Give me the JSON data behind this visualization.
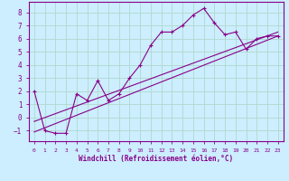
{
  "xlabel": "Windchill (Refroidissement éolien,°C)",
  "bg_color": "#cceeff",
  "grid_color": "#b0d8cc",
  "line_color": "#880088",
  "xlim": [
    -0.5,
    23.5
  ],
  "ylim": [
    -1.8,
    8.8
  ],
  "xticks": [
    0,
    1,
    2,
    3,
    4,
    5,
    6,
    7,
    8,
    9,
    10,
    11,
    12,
    13,
    14,
    15,
    16,
    17,
    18,
    19,
    20,
    21,
    22,
    23
  ],
  "yticks": [
    -1,
    0,
    1,
    2,
    3,
    4,
    5,
    6,
    7,
    8
  ],
  "main_x": [
    0,
    1,
    2,
    3,
    4,
    5,
    6,
    7,
    8,
    9,
    10,
    11,
    12,
    13,
    14,
    15,
    16,
    17,
    18,
    19,
    20,
    21,
    22,
    23
  ],
  "main_y": [
    2.0,
    -1.0,
    -1.2,
    -1.2,
    1.8,
    1.3,
    2.8,
    1.3,
    1.8,
    3.0,
    4.0,
    5.5,
    6.5,
    6.5,
    7.0,
    7.8,
    8.3,
    7.2,
    6.3,
    6.5,
    5.2,
    6.0,
    6.2,
    6.2
  ],
  "line1_x": [
    0,
    23
  ],
  "line1_y": [
    -1.1,
    6.2
  ],
  "line2_x": [
    0,
    23
  ],
  "line2_y": [
    -0.3,
    6.5
  ]
}
